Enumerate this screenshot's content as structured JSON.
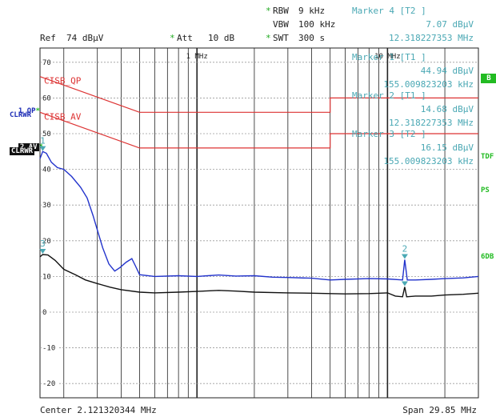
{
  "header": {
    "rbw_star": "*",
    "rbw_label": "RBW",
    "rbw_value": "9 kHz",
    "vbw_label": "VBW",
    "vbw_value": "100 kHz",
    "swt_star": "*",
    "swt_label": "SWT",
    "swt_value": "300 s",
    "ref_label": "Ref",
    "ref_value": "74 dBµV",
    "att_star": "*",
    "att_label": "Att",
    "att_value": "10 dB"
  },
  "markers": {
    "m4_title": "Marker 4 [T2 ]",
    "m4_level": "7.07 dBµV",
    "m4_freq": "12.318227353 MHz",
    "m1_title": "Marker 1 [T1 ]",
    "m1_level": "44.94 dBµV",
    "m1_freq": "155.009823203 kHz",
    "m2_title": "Marker 2 [T1 ]",
    "m2_level": "14.68 dBµV",
    "m2_freq": "12.318227353 MHz",
    "m3_title": "Marker 3 [T2 ]",
    "m3_level": "16.15 dBµV",
    "m3_freq": "155.009823203 kHz"
  },
  "side_labels": {
    "qp_num": "1",
    "qp_text": "QP",
    "qp_mode": "CLRWR",
    "av_num": "2",
    "av_text": "AV",
    "av_mode": "CLRWR",
    "star": "*",
    "b_btn": "B",
    "tdf": "TDF",
    "ps": "PS",
    "sixdb": "6DB"
  },
  "footer": {
    "center": "Center 2.121320344 MHz",
    "span": "Span 29.85 MHz"
  },
  "colors": {
    "qp_trace": "#2233cc",
    "av_trace": "#111111",
    "limit": "#dd3333",
    "marker": "#4aa8b4",
    "grid": "#222222"
  },
  "chart_data": {
    "type": "line",
    "x_scale": "log",
    "x_unit": "Hz",
    "x_range": [
      150000,
      30000000
    ],
    "y_unit": "dBµV",
    "ylim": [
      -24,
      74
    ],
    "y_ticks": [
      70,
      60,
      50,
      40,
      30,
      20,
      10,
      0,
      -10,
      -20
    ],
    "x_tick_labels": [
      {
        "label": "1 MHz",
        "x": 1000000
      },
      {
        "label": "10 MHz",
        "x": 10000000
      }
    ],
    "limit_lines": [
      {
        "name": "CISB_QP",
        "points": [
          [
            150000,
            66
          ],
          [
            500000,
            56
          ],
          [
            5000000,
            56
          ],
          [
            5000000,
            60
          ],
          [
            30000000,
            60
          ]
        ]
      },
      {
        "name": "CISB_AV",
        "points": [
          [
            150000,
            56
          ],
          [
            500000,
            46
          ],
          [
            5000000,
            46
          ],
          [
            5000000,
            50
          ],
          [
            30000000,
            50
          ]
        ]
      }
    ],
    "series": [
      {
        "trace": "1 QP",
        "points": [
          [
            150000,
            43
          ],
          [
            155000,
            45
          ],
          [
            162000,
            44.5
          ],
          [
            172000,
            42
          ],
          [
            185000,
            40.5
          ],
          [
            200000,
            40
          ],
          [
            220000,
            38
          ],
          [
            245000,
            35
          ],
          [
            265000,
            32
          ],
          [
            285000,
            27
          ],
          [
            300000,
            23
          ],
          [
            320000,
            18
          ],
          [
            345000,
            13.5
          ],
          [
            370000,
            11.5
          ],
          [
            395000,
            12.5
          ],
          [
            425000,
            14
          ],
          [
            455000,
            15
          ],
          [
            475000,
            13
          ],
          [
            500000,
            10.5
          ],
          [
            600000,
            10
          ],
          [
            800000,
            10.2
          ],
          [
            1000000,
            10
          ],
          [
            1300000,
            10.4
          ],
          [
            1600000,
            10.1
          ],
          [
            2000000,
            10.2
          ],
          [
            2500000,
            9.8
          ],
          [
            3000000,
            9.7
          ],
          [
            4000000,
            9.5
          ],
          [
            5000000,
            9
          ],
          [
            6000000,
            9.2
          ],
          [
            8000000,
            9.4
          ],
          [
            10000000,
            9.3
          ],
          [
            12000000,
            9
          ],
          [
            12318227,
            14.68
          ],
          [
            12700000,
            9
          ],
          [
            14000000,
            9
          ],
          [
            17000000,
            9.2
          ],
          [
            20000000,
            9.4
          ],
          [
            25000000,
            9.6
          ],
          [
            30000000,
            10
          ]
        ]
      },
      {
        "trace": "2 AV",
        "points": [
          [
            150000,
            15.5
          ],
          [
            155009,
            16.15
          ],
          [
            165000,
            16
          ],
          [
            180000,
            14.5
          ],
          [
            200000,
            12
          ],
          [
            230000,
            10.5
          ],
          [
            260000,
            9
          ],
          [
            300000,
            8
          ],
          [
            350000,
            7
          ],
          [
            400000,
            6.3
          ],
          [
            500000,
            5.6
          ],
          [
            600000,
            5.4
          ],
          [
            800000,
            5.6
          ],
          [
            1000000,
            5.8
          ],
          [
            1300000,
            6.1
          ],
          [
            1600000,
            5.9
          ],
          [
            2000000,
            5.6
          ],
          [
            3000000,
            5.4
          ],
          [
            4000000,
            5.3
          ],
          [
            5000000,
            5.2
          ],
          [
            6000000,
            5.1
          ],
          [
            8000000,
            5.2
          ],
          [
            10000000,
            5.4
          ],
          [
            11000000,
            4.5
          ],
          [
            12000000,
            4.3
          ],
          [
            12318227,
            7.07
          ],
          [
            12600000,
            4.3
          ],
          [
            14000000,
            4.5
          ],
          [
            17000000,
            4.5
          ],
          [
            20000000,
            4.8
          ],
          [
            25000000,
            5
          ],
          [
            30000000,
            5.3
          ]
        ]
      }
    ],
    "marker_points": [
      {
        "label": "1",
        "x": 155009.823203,
        "y": 44.94
      },
      {
        "label": "2",
        "x": 12318227.353,
        "y": 14.68
      },
      {
        "label": "3",
        "x": 155009.823203,
        "y": 16.15
      },
      {
        "label": "4",
        "x": 12318227.353,
        "y": 7.07
      }
    ]
  }
}
